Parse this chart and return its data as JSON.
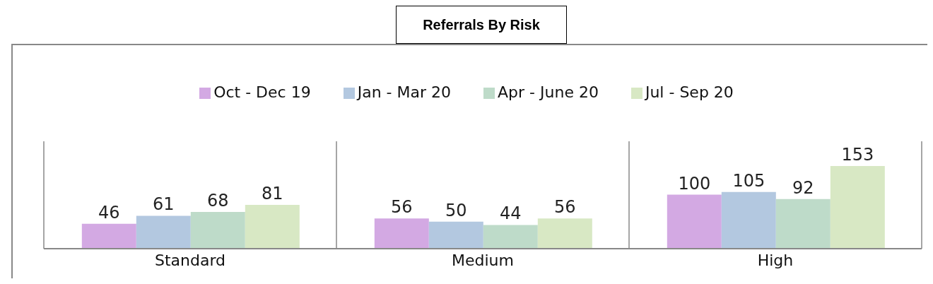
{
  "chart_data": {
    "type": "bar",
    "title": "Referrals By Risk",
    "categories": [
      "Standard",
      "Medium",
      "High"
    ],
    "series": [
      {
        "name": "Oct - Dec 19",
        "color": "#d3a9e3",
        "values": [
          46,
          56,
          100
        ]
      },
      {
        "name": "Jan - Mar 20",
        "color": "#b3c8e0",
        "values": [
          61,
          50,
          105
        ]
      },
      {
        "name": "Apr - June 20",
        "color": "#bedbc9",
        "values": [
          68,
          44,
          92
        ]
      },
      {
        "name": "Jul - Sep 20",
        "color": "#d8e8c4",
        "values": [
          81,
          56,
          153
        ]
      }
    ],
    "data_labels": true,
    "grid": "x",
    "legend": "top"
  }
}
